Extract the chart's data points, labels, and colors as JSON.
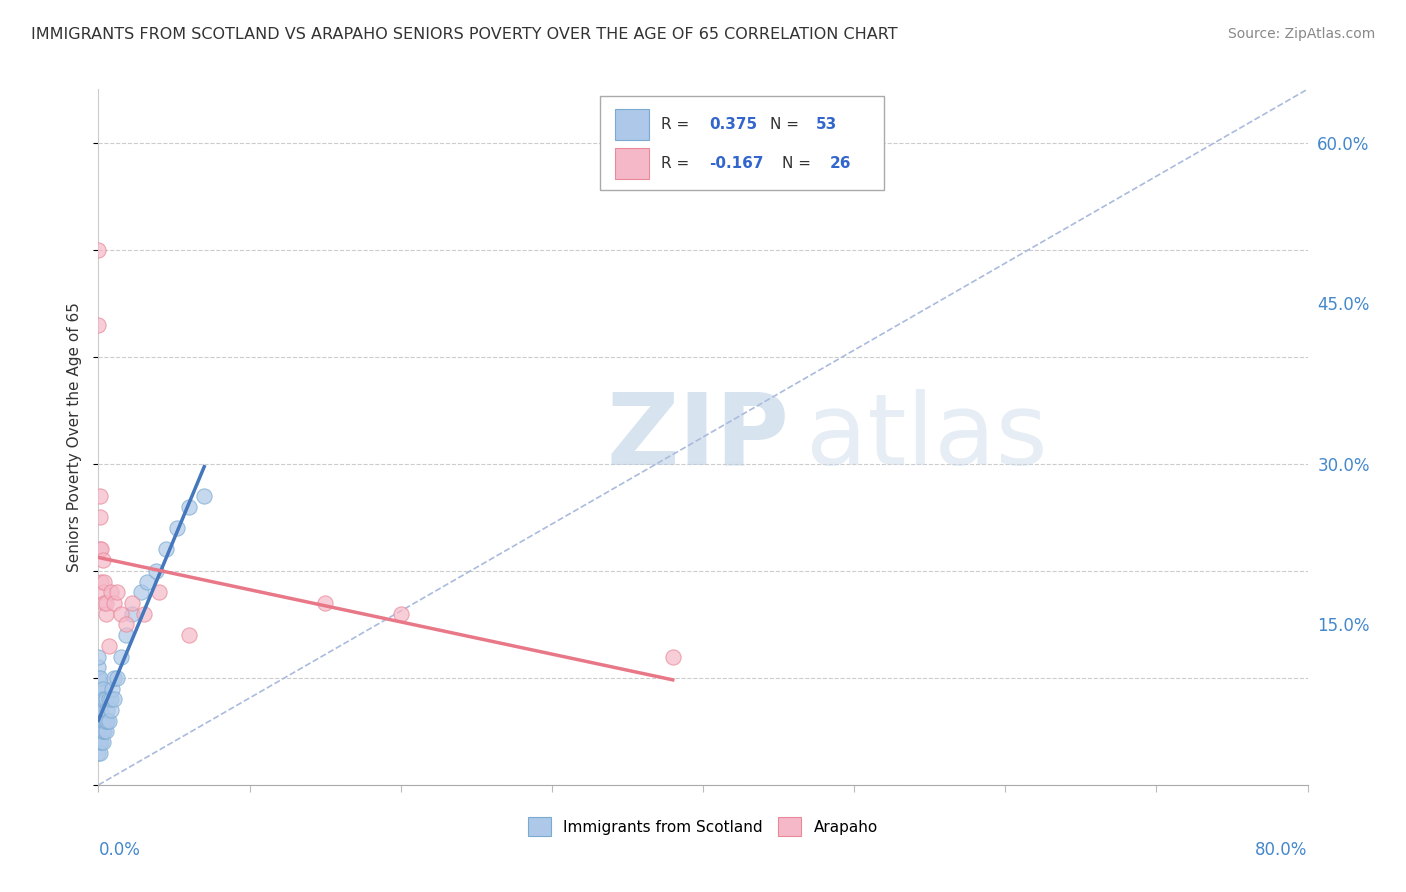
{
  "title": "IMMIGRANTS FROM SCOTLAND VS ARAPAHO SENIORS POVERTY OVER THE AGE OF 65 CORRELATION CHART",
  "source": "Source: ZipAtlas.com",
  "ylabel": "Seniors Poverty Over the Age of 65",
  "ytick_values": [
    0.0,
    0.15,
    0.3,
    0.45,
    0.6
  ],
  "xlim": [
    0.0,
    0.8
  ],
  "ylim": [
    0.0,
    0.65
  ],
  "color_scotland": "#adc8e8",
  "color_arapaho": "#f5b8c8",
  "color_scotland_edge": "#7aaad0",
  "color_arapaho_edge": "#e88898",
  "color_trendline_scotland": "#4477bb",
  "color_trendline_arapaho": "#e87888",
  "color_refline": "#aabbdd",
  "watermark_zip": "ZIP",
  "watermark_atlas": "atlas",
  "scotland_x": [
    0.0,
    0.0,
    0.0,
    0.0,
    0.0,
    0.0,
    0.0,
    0.0,
    0.0,
    0.0,
    0.001,
    0.001,
    0.001,
    0.001,
    0.001,
    0.001,
    0.001,
    0.001,
    0.002,
    0.002,
    0.002,
    0.002,
    0.002,
    0.003,
    0.003,
    0.003,
    0.003,
    0.004,
    0.004,
    0.004,
    0.005,
    0.005,
    0.005,
    0.006,
    0.006,
    0.007,
    0.007,
    0.008,
    0.008,
    0.009,
    0.01,
    0.01,
    0.012,
    0.015,
    0.018,
    0.022,
    0.028,
    0.032,
    0.038,
    0.045,
    0.052,
    0.06,
    0.07
  ],
  "scotland_y": [
    0.04,
    0.05,
    0.06,
    0.07,
    0.08,
    0.09,
    0.1,
    0.11,
    0.12,
    0.03,
    0.04,
    0.05,
    0.06,
    0.07,
    0.08,
    0.09,
    0.1,
    0.03,
    0.04,
    0.05,
    0.06,
    0.07,
    0.08,
    0.04,
    0.05,
    0.06,
    0.09,
    0.05,
    0.06,
    0.08,
    0.05,
    0.06,
    0.08,
    0.06,
    0.07,
    0.06,
    0.08,
    0.07,
    0.08,
    0.09,
    0.08,
    0.1,
    0.1,
    0.12,
    0.14,
    0.16,
    0.18,
    0.19,
    0.2,
    0.22,
    0.24,
    0.26,
    0.27
  ],
  "arapaho_x": [
    0.0,
    0.0,
    0.001,
    0.001,
    0.001,
    0.002,
    0.002,
    0.003,
    0.003,
    0.004,
    0.004,
    0.005,
    0.005,
    0.007,
    0.008,
    0.01,
    0.012,
    0.015,
    0.018,
    0.022,
    0.03,
    0.04,
    0.06,
    0.15,
    0.2,
    0.38
  ],
  "arapaho_y": [
    0.5,
    0.43,
    0.25,
    0.27,
    0.22,
    0.19,
    0.22,
    0.18,
    0.21,
    0.17,
    0.19,
    0.16,
    0.17,
    0.13,
    0.18,
    0.17,
    0.18,
    0.16,
    0.15,
    0.17,
    0.16,
    0.18,
    0.14,
    0.17,
    0.16,
    0.12
  ]
}
